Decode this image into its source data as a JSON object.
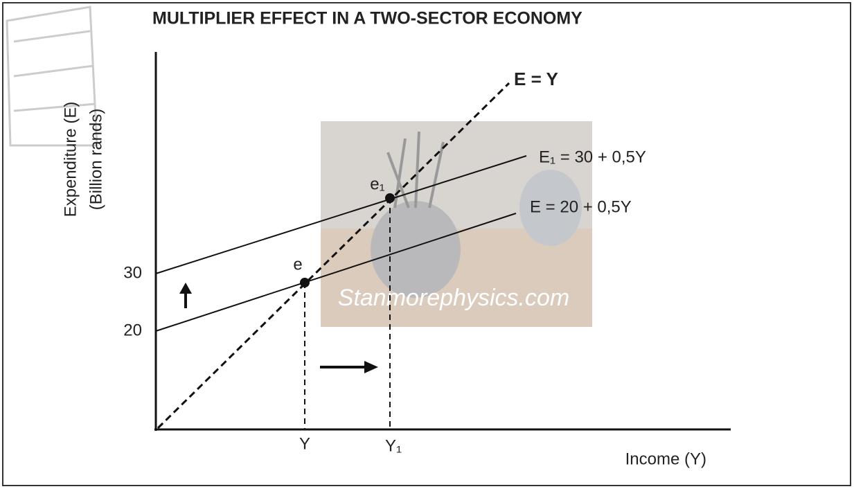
{
  "title": "MULTIPLIER EFFECT IN A TWO-SECTOR ECONOMY",
  "axes": {
    "y_label_line1": "Expenditure (E)",
    "y_label_line2": "(Billion rands)",
    "x_label": "Income (Y)",
    "y_ticks": [
      30,
      20
    ],
    "x_ticks": [
      "Y",
      "Y₁"
    ]
  },
  "lines": [
    {
      "label": "E = Y"
    },
    {
      "label": "E₁ = 30 + 0,5Y"
    },
    {
      "label": "E = 20 + 0,5Y"
    }
  ],
  "points": [
    "e",
    "e₁"
  ],
  "watermark": "Stanmorephysics.com"
}
